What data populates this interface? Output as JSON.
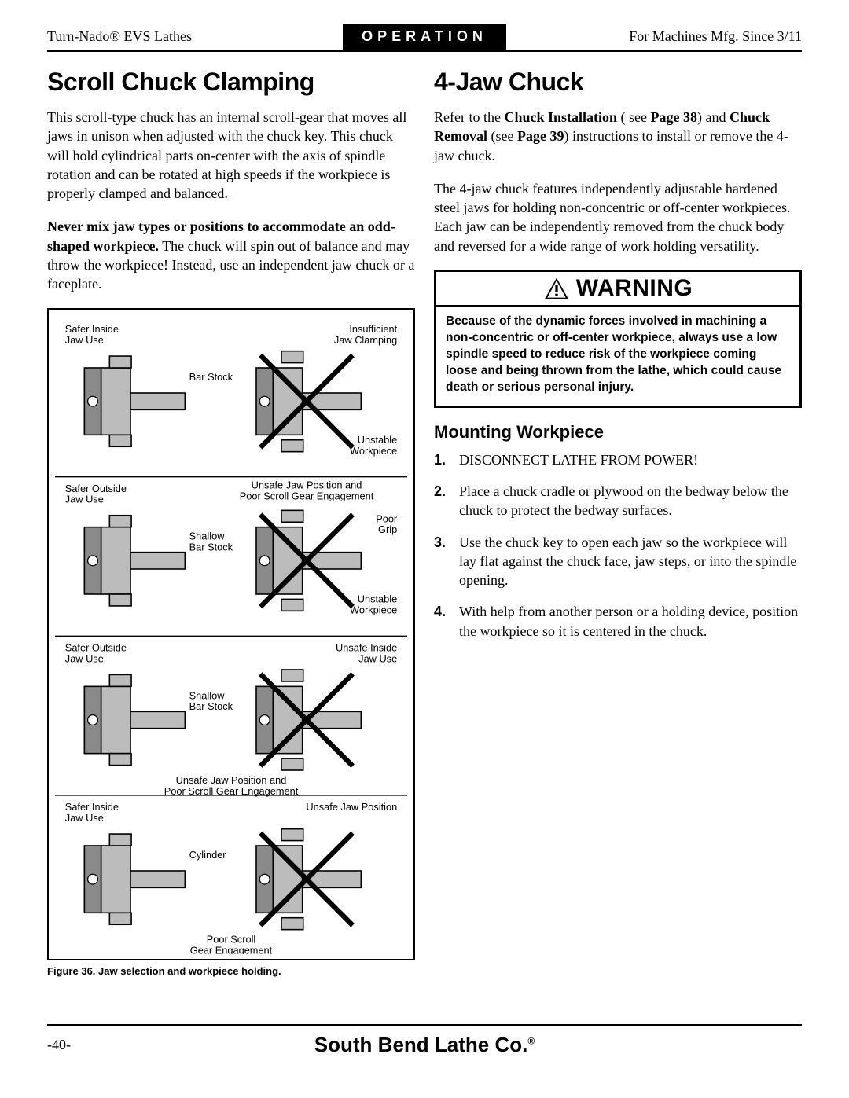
{
  "header": {
    "left": "Turn-Nado® EVS Lathes",
    "center": "OPERATION",
    "right": "For Machines Mfg. Since 3/11"
  },
  "left_col": {
    "title": "Scroll Chuck Clamping",
    "p1": "This scroll-type chuck has an internal scroll-gear that moves all jaws in unison when adjusted with the chuck key. This chuck will hold cylindrical parts on-center with the axis of spindle rotation and can be rotated at high speeds if the workpiece is properly clamped and balanced.",
    "p2_bold": "Never mix jaw types or positions to accommodate an odd-shaped workpiece.",
    "p2_rest": " The chuck will spin out of balance and may throw the workpiece! Instead, use an independent jaw chuck or a faceplate.",
    "figure_caption": "Figure 36. Jaw selection and workpiece holding.",
    "diagram": {
      "panels": [
        {
          "left_label": "Safer Inside\nJaw Use",
          "left_callout": "Bar Stock",
          "right_label": "Insufficient\nJaw Clamping",
          "right_callout": "Unstable\nWorkpiece",
          "right_cross": true
        },
        {
          "top_note": "Unsafe Jaw Position and\nPoor Scroll Gear Engagement",
          "left_label": "Safer Outside\nJaw Use",
          "left_callout": "Shallow\nBar Stock",
          "right_extra": "Poor\nGrip",
          "right_callout": "Unstable\nWorkpiece",
          "right_cross": true
        },
        {
          "left_label": "Safer Outside\nJaw Use",
          "left_callout": "Shallow\nBar Stock",
          "right_label": "Unsafe Inside\nJaw Use",
          "bottom_note": "Unsafe Jaw Position and\nPoor Scroll Gear Engagement",
          "right_cross": true
        },
        {
          "left_label": "Safer Inside\nJaw Use",
          "left_callout": "Cylinder",
          "right_label": "Unsafe Jaw Position",
          "bottom_note": "Poor Scroll\nGear Engagement",
          "right_cross": true
        }
      ],
      "colors": {
        "chuck_fill": "#bcbcbc",
        "chuck_dark": "#8a8a8a",
        "outline": "#000000",
        "cross": "#000000",
        "divider": "#000000"
      }
    }
  },
  "right_col": {
    "title": "4-Jaw Chuck",
    "p1_pre": "Refer to the ",
    "p1_b1": "Chuck Installation",
    "p1_mid1": " see ",
    "p1_b2": "Page 38",
    "p1_mid2": ") and ",
    "p1_b3": "Chuck Removal",
    "p1_mid3": " (see ",
    "p1_b4": "Page 39",
    "p1_post": ") instructions to install or remove the 4-jaw chuck.",
    "p2": "The 4-jaw chuck features independently adjustable hardened steel jaws for holding non-concentric or off-center workpieces. Each jaw can be independently removed from the chuck body and reversed for a wide range of work holding versatility.",
    "warning": {
      "label": "WARNING",
      "body": "Because of the dynamic forces involved in machining a non-concentric or off-center workpiece, always use a low spindle speed to reduce risk of the workpiece coming loose and being thrown from the lathe, which could cause death or serious personal injury."
    },
    "subhead": "Mounting Workpiece",
    "steps": [
      {
        "n": "1.",
        "t": "DISCONNECT LATHE FROM POWER!"
      },
      {
        "n": "2.",
        "t": "Place a chuck cradle or plywood on the bedway below the chuck to protect the bedway surfaces."
      },
      {
        "n": "3.",
        "t": "Use the chuck key to open each jaw so the workpiece will lay flat against the chuck face, jaw steps, or into the spindle opening."
      },
      {
        "n": "4.",
        "t": "With help from another person or a holding device, position the workpiece so it is centered in the chuck."
      }
    ]
  },
  "footer": {
    "page": "-40-",
    "brand": "South Bend Lathe Co."
  }
}
